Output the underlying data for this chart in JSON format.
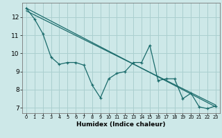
{
  "xlabel": "Humidex (Indice chaleur)",
  "background_color": "#cde8e8",
  "grid_color": "#aacfcf",
  "line_color": "#1a6b6b",
  "xlim": [
    -0.5,
    23.5
  ],
  "ylim": [
    6.7,
    12.8
  ],
  "yticks": [
    7,
    8,
    9,
    10,
    11,
    12
  ],
  "xticks": [
    0,
    1,
    2,
    3,
    4,
    5,
    6,
    7,
    8,
    9,
    10,
    11,
    12,
    13,
    14,
    15,
    16,
    17,
    18,
    19,
    20,
    21,
    22,
    23
  ],
  "series1_x": [
    0,
    1,
    2,
    3,
    4,
    5,
    6,
    7,
    8,
    9,
    10,
    11,
    12,
    13,
    14,
    15,
    16,
    17,
    18,
    19,
    20,
    21,
    22,
    23
  ],
  "series1_y": [
    12.5,
    11.9,
    11.1,
    9.8,
    9.4,
    9.5,
    9.5,
    9.35,
    8.25,
    7.55,
    8.6,
    8.9,
    9.0,
    9.5,
    9.5,
    10.45,
    8.5,
    8.6,
    8.6,
    7.5,
    7.8,
    7.05,
    6.95,
    7.1
  ],
  "series2_x": [
    0,
    23
  ],
  "series2_y": [
    12.5,
    7.05
  ],
  "series3_x": [
    0,
    23
  ],
  "series3_y": [
    12.35,
    7.15
  ],
  "xlabel_bg": "#b0b0b0"
}
